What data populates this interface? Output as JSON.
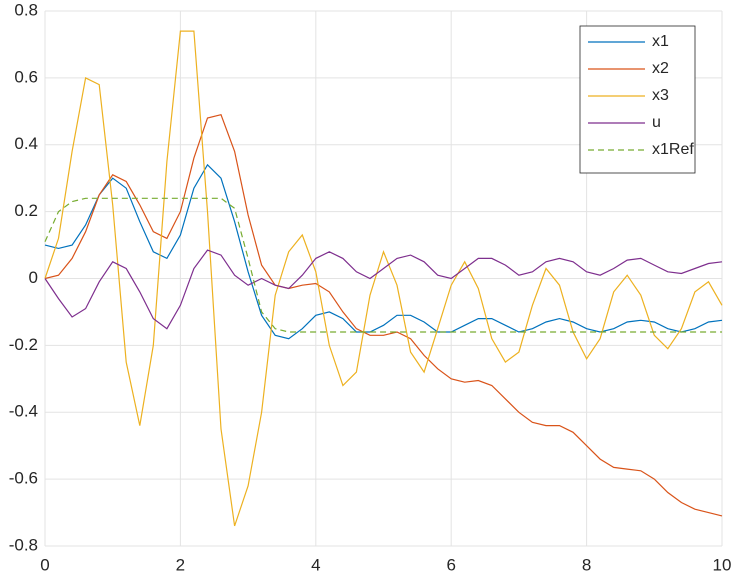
{
  "chart_data": {
    "type": "line",
    "x": [
      0,
      0.2,
      0.4,
      0.6,
      0.8,
      1,
      1.2,
      1.4,
      1.6,
      1.8,
      2,
      2.2,
      2.4,
      2.6,
      2.8,
      3,
      3.2,
      3.4,
      3.6,
      3.8,
      4,
      4.2,
      4.4,
      4.6,
      4.8,
      5,
      5.2,
      5.4,
      5.6,
      5.8,
      6,
      6.2,
      6.4,
      6.6,
      6.8,
      7,
      7.2,
      7.4,
      7.6,
      7.8,
      8,
      8.2,
      8.4,
      8.6,
      8.8,
      9,
      9.2,
      9.4,
      9.6,
      9.8,
      10
    ],
    "series": [
      {
        "name": "x1",
        "color": "#0072BD",
        "values": [
          0.1,
          0.09,
          0.1,
          0.16,
          0.25,
          0.3,
          0.27,
          0.17,
          0.08,
          0.06,
          0.13,
          0.27,
          0.34,
          0.3,
          0.17,
          0.02,
          -0.11,
          -0.17,
          -0.18,
          -0.15,
          -0.11,
          -0.1,
          -0.12,
          -0.16,
          -0.16,
          -0.14,
          -0.11,
          -0.11,
          -0.13,
          -0.16,
          -0.16,
          -0.14,
          -0.12,
          -0.12,
          -0.14,
          -0.16,
          -0.15,
          -0.13,
          -0.12,
          -0.13,
          -0.15,
          -0.16,
          -0.15,
          -0.13,
          -0.125,
          -0.13,
          -0.15,
          -0.16,
          -0.15,
          -0.13,
          -0.125
        ]
      },
      {
        "name": "x2",
        "color": "#D95319",
        "values": [
          0,
          0.01,
          0.06,
          0.14,
          0.25,
          0.31,
          0.29,
          0.22,
          0.14,
          0.12,
          0.2,
          0.36,
          0.48,
          0.49,
          0.38,
          0.19,
          0.04,
          -0.02,
          -0.03,
          -0.02,
          -0.015,
          -0.04,
          -0.1,
          -0.15,
          -0.17,
          -0.17,
          -0.16,
          -0.18,
          -0.23,
          -0.27,
          -0.3,
          -0.31,
          -0.305,
          -0.32,
          -0.36,
          -0.4,
          -0.43,
          -0.44,
          -0.44,
          -0.46,
          -0.5,
          -0.54,
          -0.565,
          -0.57,
          -0.575,
          -0.6,
          -0.64,
          -0.67,
          -0.69,
          -0.7,
          -0.71
        ]
      },
      {
        "name": "x3",
        "color": "#EDB120",
        "values": [
          0,
          0.12,
          0.38,
          0.6,
          0.58,
          0.22,
          -0.25,
          -0.44,
          -0.2,
          0.35,
          0.74,
          0.74,
          0.2,
          -0.45,
          -0.74,
          -0.62,
          -0.4,
          -0.05,
          0.08,
          0.13,
          0.02,
          -0.2,
          -0.32,
          -0.28,
          -0.05,
          0.08,
          -0.02,
          -0.22,
          -0.28,
          -0.15,
          -0.02,
          0.05,
          -0.03,
          -0.18,
          -0.25,
          -0.22,
          -0.08,
          0.03,
          -0.02,
          -0.16,
          -0.24,
          -0.18,
          -0.04,
          0.01,
          -0.05,
          -0.17,
          -0.21,
          -0.15,
          -0.04,
          -0.01,
          -0.08
        ]
      },
      {
        "name": "u",
        "color": "#7E2F8E",
        "values": [
          0,
          -0.06,
          -0.115,
          -0.09,
          -0.01,
          0.05,
          0.03,
          -0.04,
          -0.12,
          -0.15,
          -0.08,
          0.03,
          0.085,
          0.07,
          0.01,
          -0.02,
          0,
          -0.02,
          -0.03,
          0.01,
          0.06,
          0.08,
          0.06,
          0.02,
          0,
          0.03,
          0.06,
          0.07,
          0.05,
          0.01,
          0,
          0.03,
          0.06,
          0.06,
          0.04,
          0.01,
          0.02,
          0.05,
          0.06,
          0.05,
          0.02,
          0.01,
          0.03,
          0.055,
          0.06,
          0.04,
          0.02,
          0.015,
          0.03,
          0.045,
          0.05
        ]
      },
      {
        "name": "x1Ref",
        "color": "#77AC30",
        "linestyle": "dashed",
        "values": [
          0.11,
          0.2,
          0.23,
          0.24,
          0.24,
          0.24,
          0.24,
          0.24,
          0.24,
          0.24,
          0.24,
          0.24,
          0.24,
          0.24,
          0.21,
          0.06,
          -0.1,
          -0.15,
          -0.16,
          -0.16,
          -0.16,
          -0.16,
          -0.16,
          -0.16,
          -0.16,
          -0.16,
          -0.16,
          -0.16,
          -0.16,
          -0.16,
          -0.16,
          -0.16,
          -0.16,
          -0.16,
          -0.16,
          -0.16,
          -0.16,
          -0.16,
          -0.16,
          -0.16,
          -0.16,
          -0.16,
          -0.16,
          -0.16,
          -0.16,
          -0.16,
          -0.16,
          -0.16,
          -0.16,
          -0.16,
          -0.16
        ]
      }
    ],
    "xlim": [
      0,
      10
    ],
    "xticks": [
      0,
      2,
      4,
      6,
      8,
      10
    ],
    "ylim": [
      -0.8,
      0.8
    ],
    "yticks": [
      -0.8,
      -0.6,
      -0.4,
      -0.2,
      0,
      0.2,
      0.4,
      0.6,
      0.8
    ],
    "grid": true,
    "legend": "top-right"
  }
}
